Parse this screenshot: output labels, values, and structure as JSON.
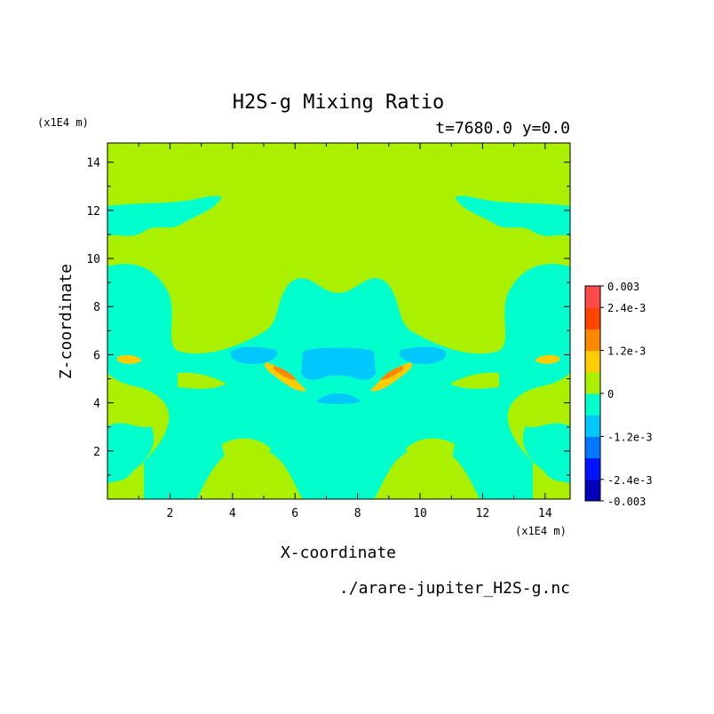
{
  "chart_data": {
    "type": "heatmap",
    "title": "H2S-g Mixing Ratio",
    "subtitle": "t=7680.0 y=0.0",
    "xlabel": "X-coordinate",
    "ylabel": "Z-coordinate",
    "x_unit": "(x1E4 m)",
    "y_unit": "(x1E4 m)",
    "xlim": [
      0,
      14.8
    ],
    "ylim": [
      0,
      14.8
    ],
    "xticks": [
      "2",
      "4",
      "6",
      "8",
      "10",
      "12",
      "14"
    ],
    "yticks": [
      "2",
      "4",
      "6",
      "8",
      "10",
      "12",
      "14"
    ],
    "footer": "./arare-jupiter_H2S-g.nc",
    "colorbar": {
      "labels": [
        "0.003",
        "2.4e-3",
        "1.2e-3",
        "0",
        "-1.2e-3",
        "-2.4e-3",
        "-0.003"
      ],
      "levels": [
        -0.003,
        -0.0024,
        -0.0018,
        -0.0012,
        -0.0006,
        0,
        0.0006,
        0.0012,
        0.0018,
        0.0024,
        0.003
      ],
      "colors": [
        "#0000b8",
        "#0014ff",
        "#0078ff",
        "#00c8ff",
        "#00ffcc",
        "#aaf000",
        "#ffcc00",
        "#ff8800",
        "#ff4400",
        "#ff4a4a"
      ]
    },
    "regions": [
      {
        "level": "0 to 0.0006",
        "color": "#aaf000",
        "description": "background, most of domain"
      },
      {
        "level": "-0.0006 to 0",
        "color": "#00ffcc",
        "description": "central band z 3-11"
      },
      {
        "level": "-0.0012 to -0.0006",
        "color": "#00c8ff",
        "description": "blobs near z 4-6, x 4-10"
      },
      {
        "level": "0.0006 to 0.0012",
        "color": "#ffcc00",
        "description": "streaks near z 5.5-6"
      },
      {
        "level": "0.0012 to 0.0018",
        "color": "#ff8800",
        "description": "small cores near x 5.6 and 9.4"
      }
    ]
  }
}
